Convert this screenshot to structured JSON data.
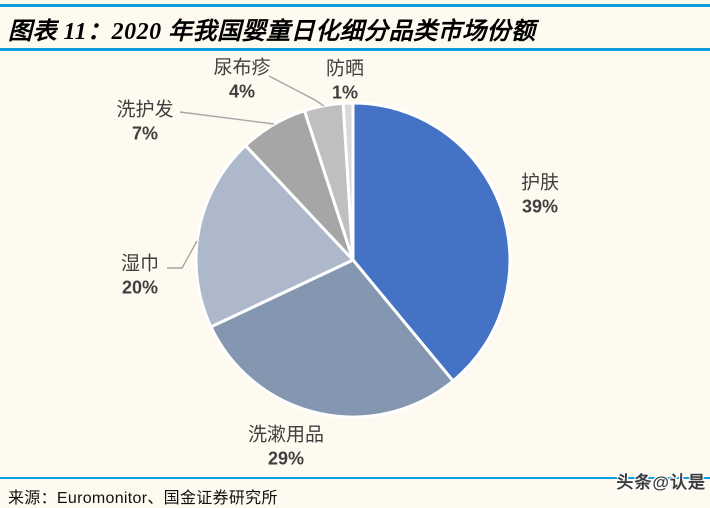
{
  "header": {
    "title": "图表 11：2020 年我国婴童日化细分品类市场份额"
  },
  "footer": {
    "source": "来源：Euromonitor、国金证券研究所"
  },
  "watermark": "头条@认是",
  "colors": {
    "accent_rule": "#0f9bdf",
    "background": "#fefaf0",
    "label_text": "#3f3f3f",
    "leader_line": "#a6a6a6",
    "slice_border": "#ffffff"
  },
  "chart_data": {
    "type": "pie",
    "title": "2020 年我国婴童日化细分品类市场份额",
    "unit": "percent",
    "start_angle_deg": 0,
    "direction": "clockwise",
    "legend_position": "none",
    "labels_outside": true,
    "slices": [
      {
        "label": "护肤",
        "value": 39,
        "display": "39%",
        "color": "#4472c4"
      },
      {
        "label": "洗漱用品",
        "value": 29,
        "display": "29%",
        "color": "#8496b0"
      },
      {
        "label": "湿巾",
        "value": 20,
        "display": "20%",
        "color": "#adb9ca"
      },
      {
        "label": "洗护发",
        "value": 7,
        "display": "7%",
        "color": "#a6a6a6"
      },
      {
        "label": "尿布疹",
        "value": 4,
        "display": "4%",
        "color": "#bfbfbf"
      },
      {
        "label": "防晒",
        "value": 1,
        "display": "1%",
        "color": "#d9d9d9"
      }
    ]
  }
}
